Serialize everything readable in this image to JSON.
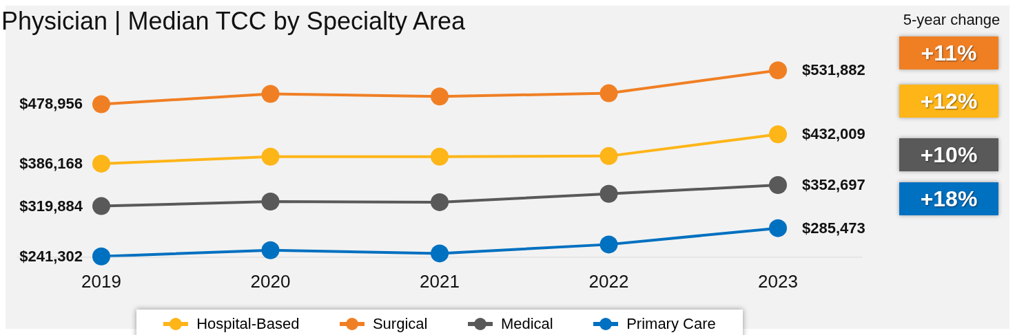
{
  "chart_data": {
    "type": "line",
    "title": "Physician | Median TCC by Specialty Area",
    "categories": [
      "2019",
      "2020",
      "2021",
      "2022",
      "2023"
    ],
    "series": [
      {
        "name": "Hospital-Based",
        "color": "#fdb518",
        "values": [
          386168,
          397000,
          397000,
          398000,
          432009
        ],
        "value_labels": [
          "$386,168",
          null,
          null,
          null,
          "$432,009"
        ]
      },
      {
        "name": "Surgical",
        "color": "#f07f24",
        "values": [
          478956,
          495000,
          491000,
          496000,
          531882
        ],
        "value_labels": [
          "$478,956",
          null,
          null,
          null,
          "$531,882"
        ]
      },
      {
        "name": "Medical",
        "color": "#595959",
        "values": [
          319884,
          327000,
          326000,
          339000,
          352697
        ],
        "value_labels": [
          "$319,884",
          null,
          null,
          null,
          "$352,697"
        ]
      },
      {
        "name": "Primary Care",
        "color": "#0070c0",
        "values": [
          241302,
          251000,
          246000,
          260000,
          285473
        ],
        "value_labels": [
          "$241,302",
          null,
          null,
          null,
          "$285,473"
        ]
      }
    ],
    "annotations": [
      "5-year change",
      "+11%",
      "+12%",
      "+10%",
      "+18%"
    ],
    "marker": "circle",
    "line_style": "solid",
    "grid": false,
    "legend": "bottom"
  }
}
